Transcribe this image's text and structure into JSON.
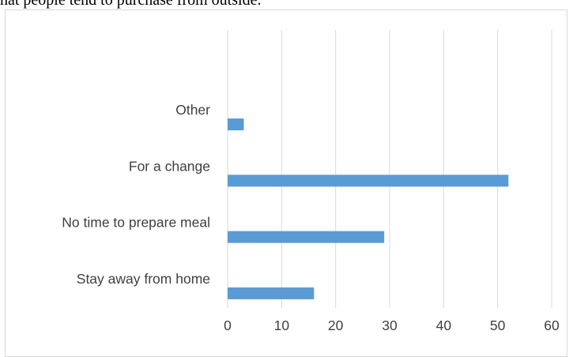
{
  "document": {
    "caption_fragment": "hat people tend to purchase from outside."
  },
  "chart_data": {
    "type": "bar",
    "orientation": "horizontal",
    "categories": [
      "Other",
      "For a change",
      "No time to prepare meal",
      "Stay away from home"
    ],
    "values": [
      3,
      52,
      29,
      16
    ],
    "xlim": [
      0,
      60
    ],
    "xticks": [
      0,
      10,
      20,
      30,
      40,
      50,
      60
    ],
    "grid": true,
    "legend": "none",
    "title": "",
    "xlabel": "",
    "ylabel": "",
    "colors": {
      "bar": "#5b9bd5",
      "grid": "#d9d9d9",
      "text": "#404040"
    }
  }
}
